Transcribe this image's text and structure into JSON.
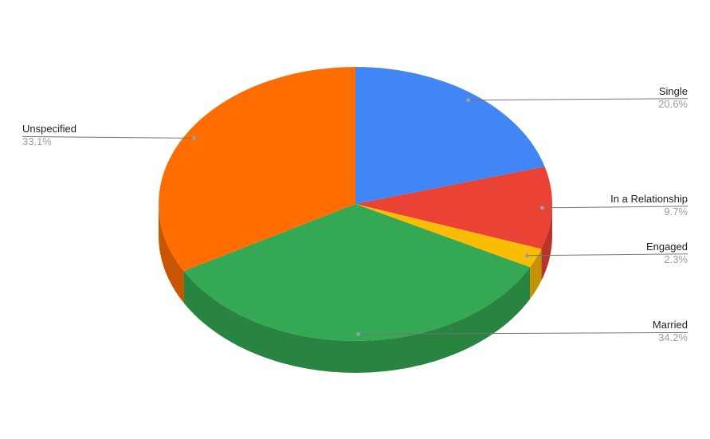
{
  "chart_data": {
    "type": "pie",
    "style": "3d",
    "title": "",
    "legend_position": "labeled-callouts",
    "direction": "clockwise",
    "start_angle_deg": 0,
    "background": "#FFFFFF",
    "slices": [
      {
        "label": "Single",
        "value": 20.6,
        "percent_label": "20.6%",
        "color": "#4285F4"
      },
      {
        "label": "In a Relationship",
        "value": 9.7,
        "percent_label": "9.7%",
        "color": "#EA4335"
      },
      {
        "label": "Engaged",
        "value": 2.3,
        "percent_label": "2.3%",
        "color": "#FBBC04"
      },
      {
        "label": "Married",
        "value": 34.2,
        "percent_label": "34.2%",
        "color": "#34A853"
      },
      {
        "label": "Unspecified",
        "value": 33.1,
        "percent_label": "33.1%",
        "color": "#FF6D01"
      }
    ],
    "label_text_color": "#202124",
    "percent_text_color": "#9E9E9E",
    "leader_line_color": "#757575",
    "anchor_dot_color": "#9E9E9E"
  }
}
